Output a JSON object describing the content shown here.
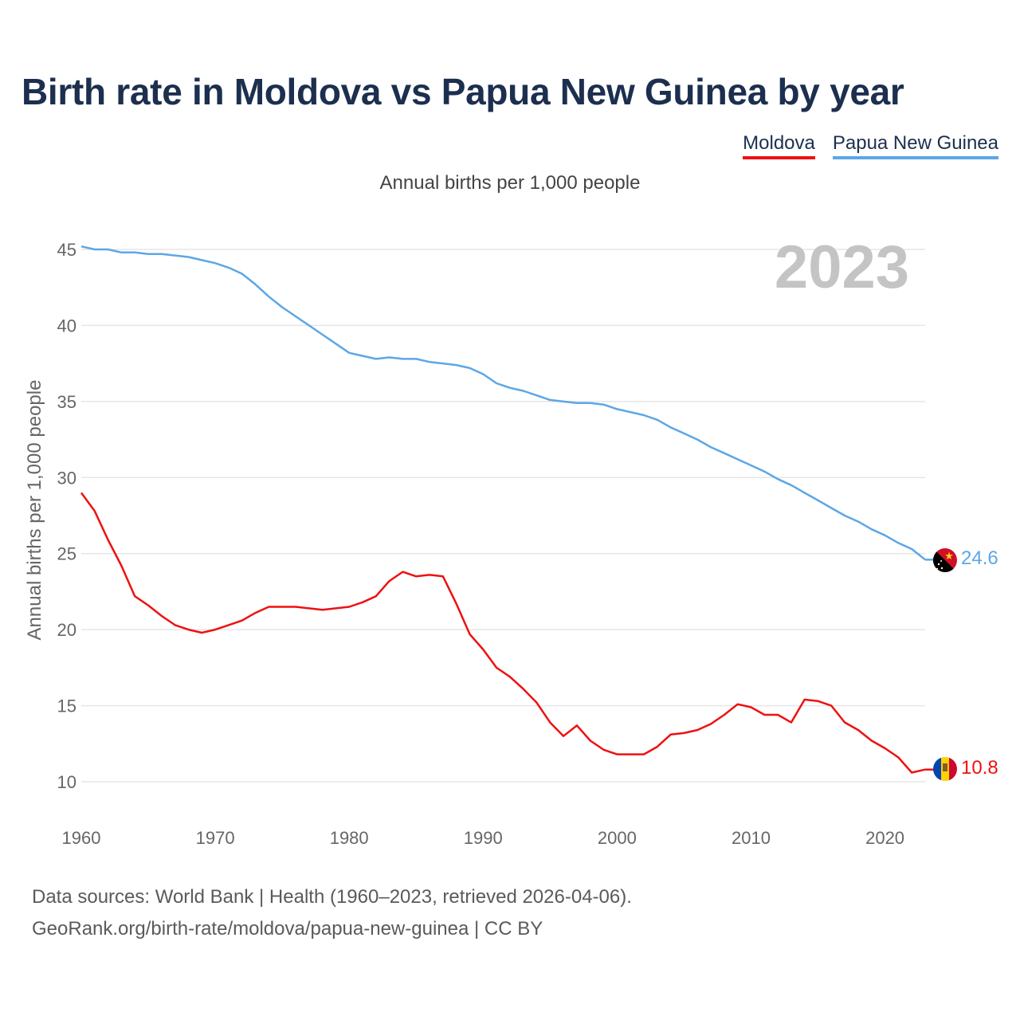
{
  "title": "Birth rate in Moldova vs Papua New Guinea by year",
  "legend": [
    {
      "label": "Moldova",
      "color": "#ee1111"
    },
    {
      "label": "Papua New Guinea",
      "color": "#5ca7e6"
    }
  ],
  "subtitle": "Annual births per 1,000 people",
  "source_line1": "Data sources: World Bank | Health (1960–2023, retrieved 2026-04-06).",
  "source_line2": "GeoRank.org/birth-rate/moldova/papua-new-guinea | CC BY",
  "chart_data": {
    "type": "line",
    "title": "Birth rate in Moldova vs Papua New Guinea by year",
    "subtitle": "Annual births per 1,000 people",
    "xlabel": "",
    "ylabel": "Annual births per 1,000 people",
    "year_label": "2023",
    "xlim": [
      1960,
      2023
    ],
    "ylim": [
      10,
      45
    ],
    "x_ticks": [
      1960,
      1970,
      1980,
      1990,
      2000,
      2010,
      2020
    ],
    "y_ticks": [
      10,
      15,
      20,
      25,
      30,
      35,
      40,
      45
    ],
    "grid": true,
    "series": [
      {
        "name": "Moldova",
        "color": "#ee1111",
        "end_label": "10.8",
        "flag": "moldova-flag-icon",
        "x": [
          1960,
          1961,
          1962,
          1963,
          1964,
          1965,
          1966,
          1967,
          1968,
          1969,
          1970,
          1971,
          1972,
          1973,
          1974,
          1975,
          1976,
          1977,
          1978,
          1979,
          1980,
          1981,
          1982,
          1983,
          1984,
          1985,
          1986,
          1987,
          1988,
          1989,
          1990,
          1991,
          1992,
          1993,
          1994,
          1995,
          1996,
          1997,
          1998,
          1999,
          2000,
          2001,
          2002,
          2003,
          2004,
          2005,
          2006,
          2007,
          2008,
          2009,
          2010,
          2011,
          2012,
          2013,
          2014,
          2015,
          2016,
          2017,
          2018,
          2019,
          2020,
          2021,
          2022,
          2023
        ],
        "values": [
          29.0,
          27.8,
          25.9,
          24.2,
          22.2,
          21.6,
          20.9,
          20.3,
          20.0,
          19.8,
          20.0,
          20.3,
          20.6,
          21.1,
          21.5,
          21.5,
          21.5,
          21.4,
          21.3,
          21.4,
          21.5,
          21.8,
          22.2,
          23.2,
          23.8,
          23.5,
          23.6,
          23.5,
          21.7,
          19.7,
          18.7,
          17.5,
          16.9,
          16.1,
          15.2,
          13.9,
          13.0,
          13.7,
          12.7,
          12.1,
          11.8,
          11.8,
          11.8,
          12.3,
          13.1,
          13.2,
          13.4,
          13.8,
          14.4,
          15.1,
          14.9,
          14.4,
          14.4,
          13.9,
          15.4,
          15.3,
          15.0,
          13.9,
          13.4,
          12.7,
          12.2,
          11.6,
          10.6,
          10.8
        ]
      },
      {
        "name": "Papua New Guinea",
        "color": "#5ca7e6",
        "end_label": "24.6",
        "flag": "papua-new-guinea-flag-icon",
        "x": [
          1960,
          1961,
          1962,
          1963,
          1964,
          1965,
          1966,
          1967,
          1968,
          1969,
          1970,
          1971,
          1972,
          1973,
          1974,
          1975,
          1976,
          1977,
          1978,
          1979,
          1980,
          1981,
          1982,
          1983,
          1984,
          1985,
          1986,
          1987,
          1988,
          1989,
          1990,
          1991,
          1992,
          1993,
          1994,
          1995,
          1996,
          1997,
          1998,
          1999,
          2000,
          2001,
          2002,
          2003,
          2004,
          2005,
          2006,
          2007,
          2008,
          2009,
          2010,
          2011,
          2012,
          2013,
          2014,
          2015,
          2016,
          2017,
          2018,
          2019,
          2020,
          2021,
          2022,
          2023
        ],
        "values": [
          45.2,
          45.0,
          45.0,
          44.8,
          44.8,
          44.7,
          44.7,
          44.6,
          44.5,
          44.3,
          44.1,
          43.8,
          43.4,
          42.7,
          41.9,
          41.2,
          40.6,
          40.0,
          39.4,
          38.8,
          38.2,
          38.0,
          37.8,
          37.9,
          37.8,
          37.8,
          37.6,
          37.5,
          37.4,
          37.2,
          36.8,
          36.2,
          35.9,
          35.7,
          35.4,
          35.1,
          35.0,
          34.9,
          34.9,
          34.8,
          34.5,
          34.3,
          34.1,
          33.8,
          33.3,
          32.9,
          32.5,
          32.0,
          31.6,
          31.2,
          30.8,
          30.4,
          29.9,
          29.5,
          29.0,
          28.5,
          28.0,
          27.5,
          27.1,
          26.6,
          26.2,
          25.7,
          25.3,
          24.6
        ]
      }
    ]
  }
}
